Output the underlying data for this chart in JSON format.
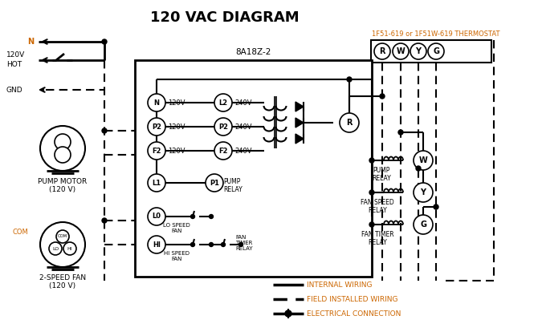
{
  "title": "120 VAC DIAGRAM",
  "bg_color": "#ffffff",
  "line_color": "#000000",
  "orange_color": "#cc6600",
  "thermostat_label": "1F51-619 or 1F51W-619 THERMOSTAT",
  "box8a_label": "8A18Z-2",
  "thermostat_terminals": [
    "R",
    "W",
    "Y",
    "G"
  ],
  "pump_motor_label": "PUMP MOTOR\n(120 V)",
  "fan_label": "2-SPEED FAN\n(120 V)"
}
